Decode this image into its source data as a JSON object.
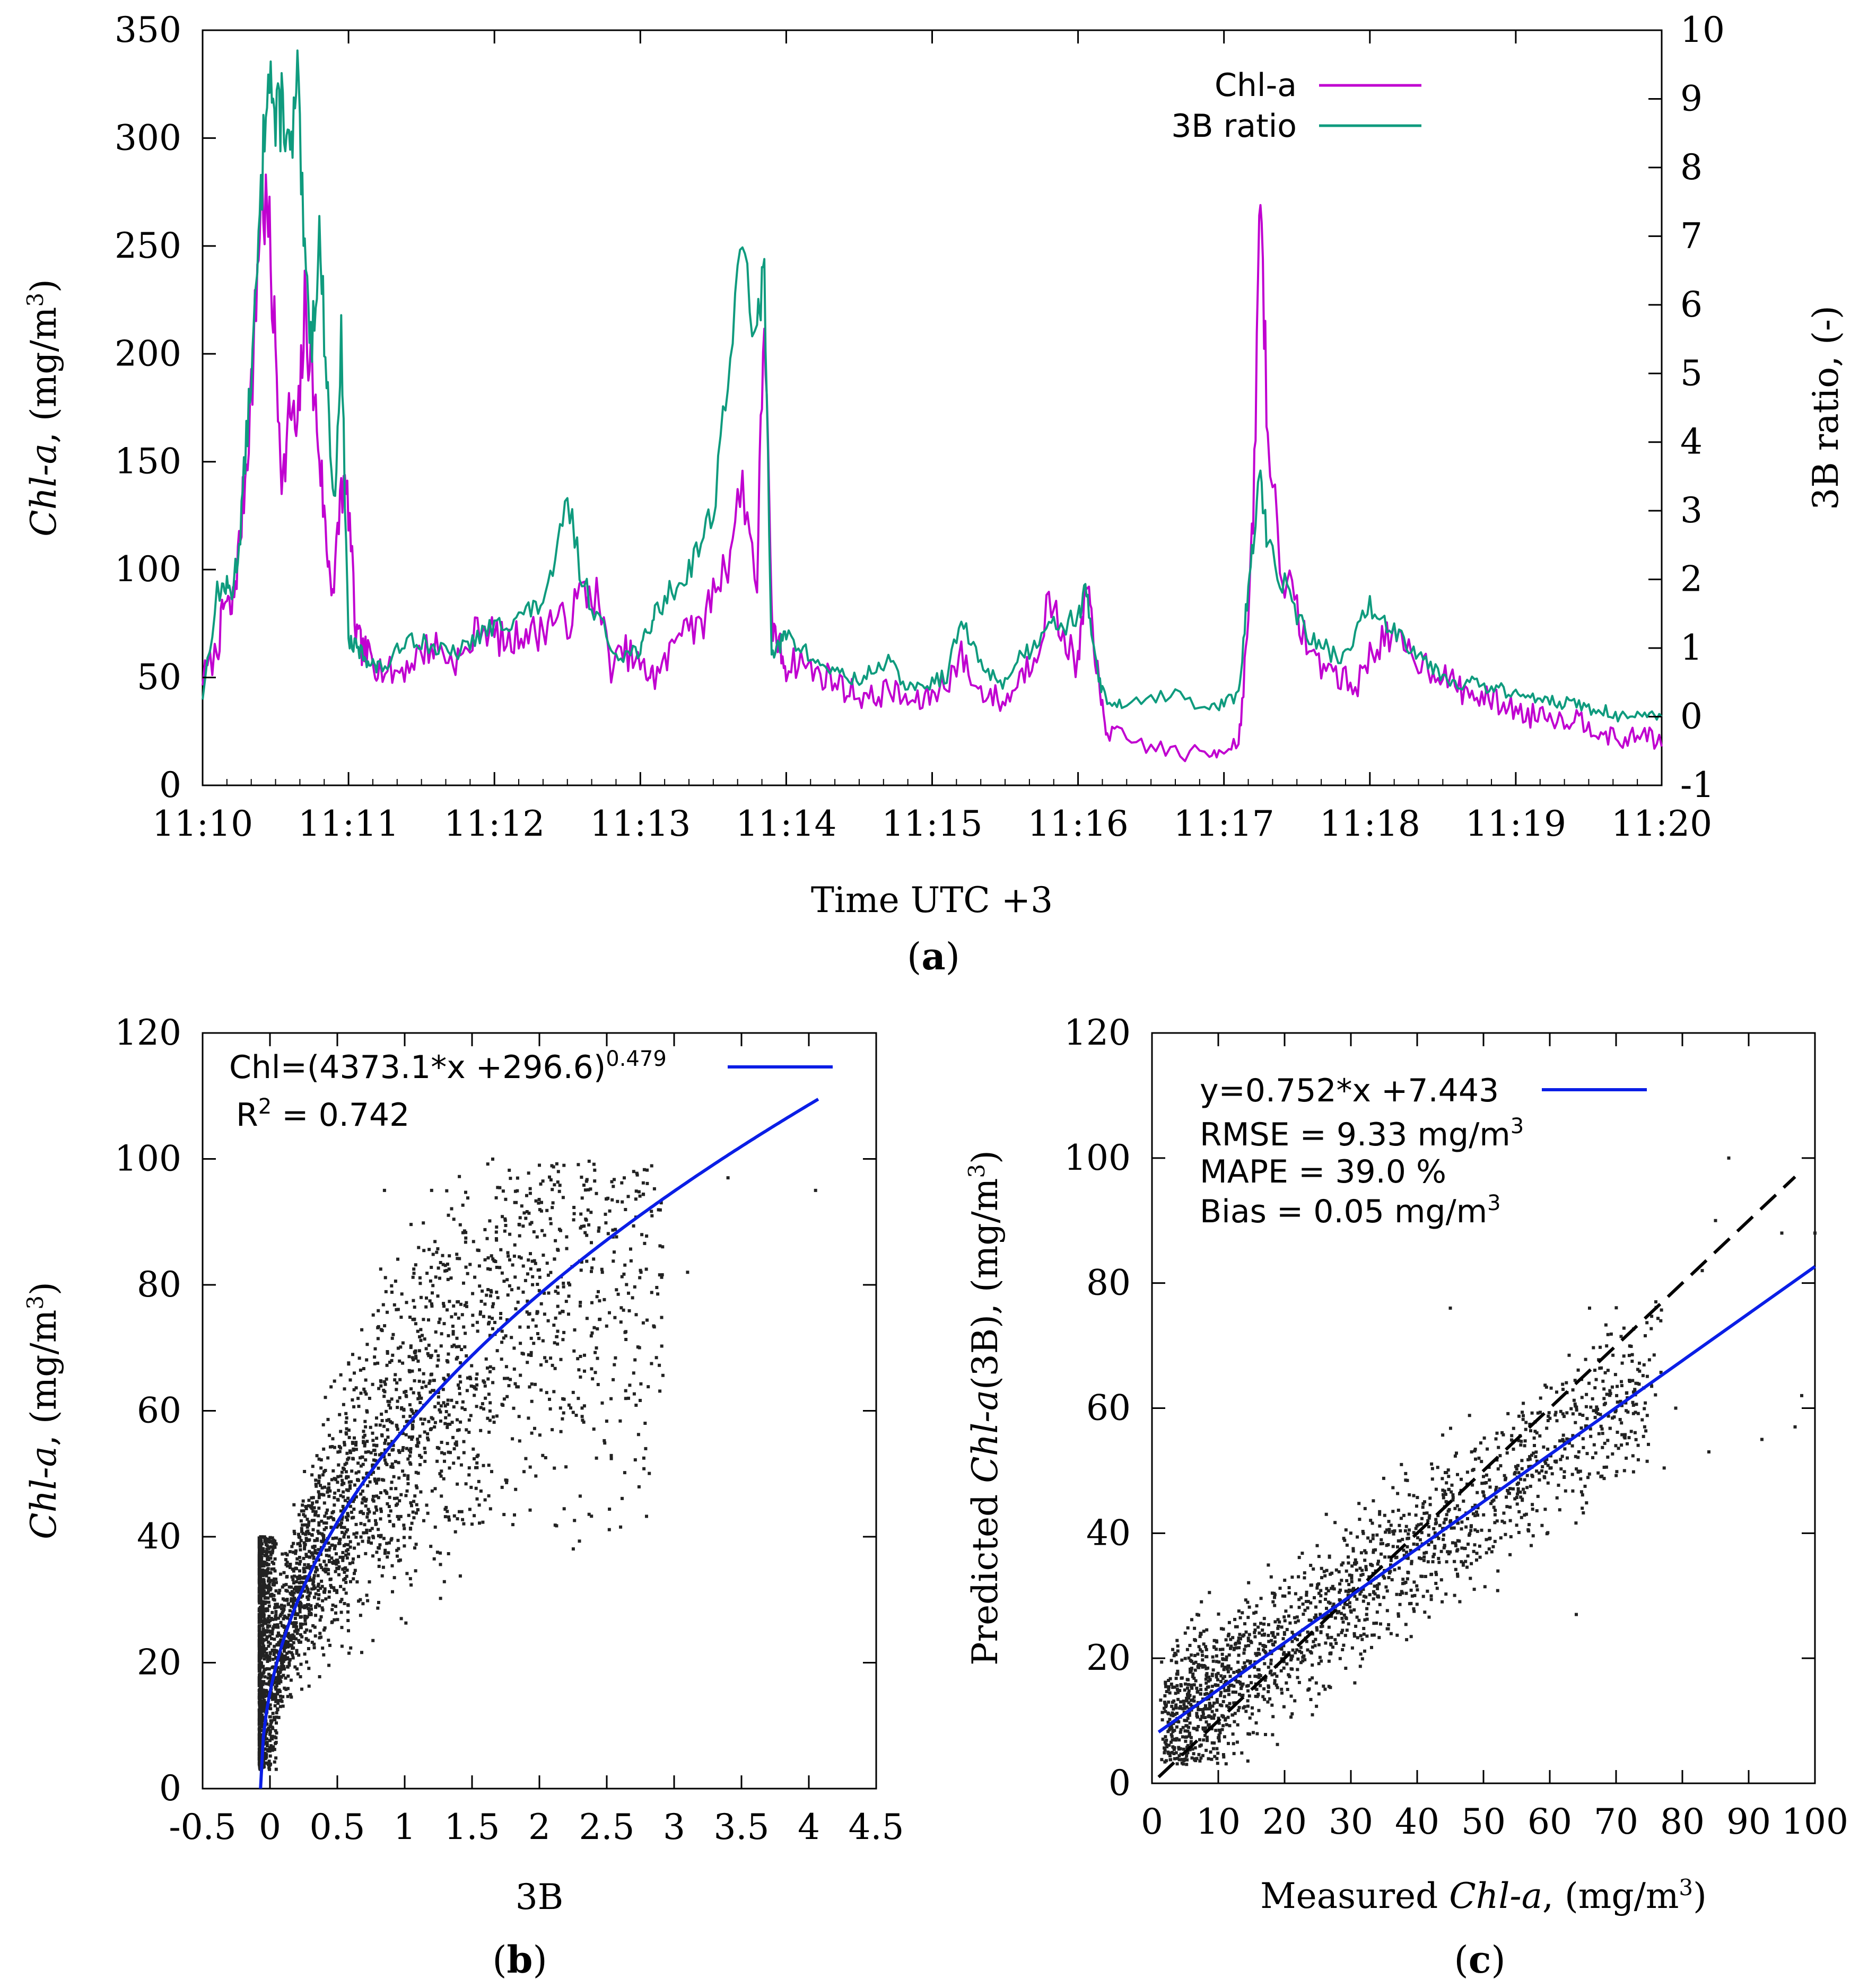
{
  "colors": {
    "chl": "#c000d0",
    "ratio": "#0f9b7e",
    "fit": "#0a1ee6",
    "points": "#222222",
    "axis": "#000000"
  },
  "chart_data": [
    {
      "type": "line",
      "panel": "(a)",
      "xlabel": "Time UTC +3",
      "ylabel_italic": "Chl-a",
      "ylabel_rest": ", (mg/m",
      "ylabel_sup": "3",
      "ylabel_close": ")",
      "y2label": "3B ratio, (-)",
      "x_ticks": [
        "11:10",
        "11:11",
        "11:12",
        "11:13",
        "11:14",
        "11:15",
        "11:16",
        "11:17",
        "11:18",
        "11:19",
        "11:20"
      ],
      "x_range_min": [
        0,
        10
      ],
      "ylim": [
        0,
        350
      ],
      "y_ticks": [
        0,
        50,
        100,
        150,
        200,
        250,
        300,
        350
      ],
      "y2lim": [
        -1,
        10
      ],
      "y2_ticks": [
        -1,
        0,
        1,
        2,
        3,
        4,
        5,
        6,
        7,
        8,
        9,
        10
      ],
      "legend": [
        "Chl-a",
        "3B ratio"
      ],
      "legend_position": "top-right",
      "series": [
        {
          "name": "Chl-a",
          "axis": "y1",
          "x": [
            0,
            0.1,
            0.15,
            0.2,
            0.25,
            0.3,
            0.35,
            0.4,
            0.45,
            0.5,
            0.55,
            0.6,
            0.65,
            0.7,
            0.75,
            0.8,
            0.85,
            0.9,
            0.95,
            1.0,
            1.05,
            1.1,
            1.15,
            1.2,
            1.3,
            1.4,
            1.5,
            1.6,
            1.7,
            1.8,
            1.9,
            2.0,
            2.1,
            2.2,
            2.3,
            2.4,
            2.5,
            2.6,
            2.7,
            2.8,
            2.9,
            3.0,
            3.05,
            3.1,
            3.2,
            3.3,
            3.4,
            3.5,
            3.6,
            3.7,
            3.8,
            3.85,
            3.9,
            3.95,
            4.0,
            4.1,
            4.2,
            4.3,
            4.4,
            4.5,
            4.6,
            4.7,
            4.8,
            4.9,
            5.0,
            5.1,
            5.2,
            5.3,
            5.4,
            5.5,
            5.6,
            5.7,
            5.8,
            5.9,
            6.0,
            6.05,
            6.1,
            6.15,
            6.2,
            6.3,
            6.5,
            6.7,
            6.9,
            7.0,
            7.1,
            7.15,
            7.2,
            7.25,
            7.3,
            7.4,
            7.5,
            7.6,
            7.7,
            7.8,
            7.9,
            8.0,
            8.1,
            8.2,
            8.3,
            8.4,
            8.5,
            8.6,
            8.7,
            8.8,
            8.9,
            9.0,
            9.1,
            9.2,
            9.3,
            9.4,
            9.5,
            9.6,
            9.7,
            9.8,
            9.9,
            10.0
          ],
          "y": [
            50,
            62,
            85,
            80,
            110,
            150,
            200,
            275,
            260,
            200,
            140,
            175,
            160,
            220,
            190,
            155,
            110,
            90,
            140,
            130,
            70,
            62,
            60,
            55,
            52,
            55,
            62,
            65,
            58,
            60,
            75,
            70,
            65,
            72,
            70,
            78,
            75,
            90,
            88,
            55,
            62,
            55,
            52,
            50,
            60,
            80,
            70,
            90,
            105,
            140,
            95,
            225,
            75,
            65,
            55,
            58,
            52,
            50,
            45,
            42,
            40,
            45,
            40,
            38,
            42,
            48,
            60,
            45,
            42,
            38,
            50,
            60,
            85,
            70,
            55,
            90,
            75,
            40,
            25,
            22,
            18,
            15,
            14,
            18,
            20,
            60,
            120,
            280,
            160,
            100,
            80,
            60,
            55,
            50,
            45,
            60,
            70,
            65,
            60,
            55,
            52,
            45,
            42,
            40,
            38,
            35,
            32,
            35,
            30,
            32,
            28,
            25,
            20,
            22,
            25,
            18
          ]
        },
        {
          "name": "3B ratio",
          "axis": "y2",
          "x": [
            0,
            0.1,
            0.15,
            0.2,
            0.25,
            0.3,
            0.35,
            0.4,
            0.45,
            0.5,
            0.55,
            0.6,
            0.65,
            0.7,
            0.75,
            0.8,
            0.85,
            0.9,
            0.95,
            1.0,
            1.05,
            1.1,
            1.15,
            1.2,
            1.3,
            1.4,
            1.5,
            1.6,
            1.7,
            1.8,
            1.9,
            2.0,
            2.1,
            2.2,
            2.3,
            2.4,
            2.5,
            2.6,
            2.7,
            2.8,
            2.9,
            3.0,
            3.05,
            3.1,
            3.2,
            3.3,
            3.4,
            3.5,
            3.6,
            3.7,
            3.8,
            3.85,
            3.9,
            3.95,
            4.0,
            4.1,
            4.2,
            4.3,
            4.4,
            4.5,
            4.6,
            4.7,
            4.8,
            4.9,
            5.0,
            5.1,
            5.2,
            5.3,
            5.4,
            5.5,
            5.6,
            5.7,
            5.8,
            5.9,
            6.0,
            6.05,
            6.1,
            6.15,
            6.2,
            6.3,
            6.5,
            6.7,
            6.9,
            7.0,
            7.1,
            7.15,
            7.2,
            7.25,
            7.3,
            7.4,
            7.5,
            7.6,
            7.7,
            7.8,
            7.9,
            8.0,
            8.1,
            8.2,
            8.3,
            8.4,
            8.5,
            8.6,
            8.7,
            8.8,
            8.9,
            9.0,
            9.1,
            9.2,
            9.3,
            9.4,
            9.5,
            9.6,
            9.7,
            9.8,
            9.9,
            10.0
          ],
          "y": [
            0.3,
            1.8,
            1.9,
            1.8,
            2.5,
            4.0,
            5.5,
            7.5,
            9.8,
            8.5,
            9.0,
            8.0,
            9.2,
            6.5,
            5.5,
            7.0,
            5.0,
            3.0,
            5.5,
            1.1,
            1.0,
            0.9,
            0.8,
            0.7,
            0.8,
            1.2,
            1.1,
            1.0,
            0.9,
            1.0,
            1.2,
            1.3,
            1.4,
            1.5,
            1.6,
            2.0,
            3.2,
            2.0,
            1.5,
            1.0,
            0.9,
            1.0,
            1.2,
            1.5,
            1.8,
            2.0,
            2.5,
            3.0,
            5.0,
            6.8,
            5.5,
            6.5,
            1.0,
            1.0,
            1.2,
            1.0,
            0.8,
            0.7,
            0.6,
            0.5,
            0.7,
            0.8,
            0.5,
            0.4,
            0.5,
            0.6,
            1.4,
            0.9,
            0.6,
            0.5,
            0.9,
            1.0,
            1.5,
            1.3,
            1.5,
            1.8,
            1.2,
            0.5,
            0.2,
            0.2,
            0.3,
            0.3,
            0.1,
            0.2,
            0.3,
            1.5,
            2.5,
            3.5,
            2.5,
            2.0,
            1.5,
            1.1,
            1.0,
            0.8,
            1.2,
            1.6,
            1.4,
            1.2,
            1.0,
            0.8,
            0.6,
            0.5,
            0.5,
            0.4,
            0.4,
            0.3,
            0.3,
            0.3,
            0.2,
            0.2,
            0.1,
            0.1,
            0.0,
            0.0,
            0.0,
            0.0
          ]
        }
      ]
    },
    {
      "type": "scatter",
      "panel": "(b)",
      "xlabel": "3B",
      "ylabel_italic": "Chl-a",
      "ylabel_rest": ", (mg/m",
      "ylabel_sup": "3",
      "ylabel_close": ")",
      "xlim": [
        -0.5,
        4.5
      ],
      "x_ticks": [
        -0.5,
        0,
        0.5,
        1,
        1.5,
        2,
        2.5,
        3,
        3.5,
        4,
        4.5
      ],
      "ylim": [
        0,
        120
      ],
      "y_ticks": [
        0,
        20,
        40,
        60,
        80,
        100,
        120
      ],
      "fit_label": "Chl=(4373.1*x +296.6)",
      "fit_exponent": "0.479",
      "r2_label": "R",
      "r2_sup": "2",
      "r2_value": " = 0.742",
      "fit": {
        "a": 4373.1,
        "b": 296.6,
        "exp": 0.479,
        "x_from": -0.07,
        "x_to": 4.07
      },
      "scatter_points": "~4000 measured points concentrated near x=0, y=5-40, trending up along the fit"
    },
    {
      "type": "scatter",
      "panel": "(c)",
      "xlabel_pre": "Measured ",
      "xlabel_italic": "Chl-a",
      "xlabel_rest": ", (mg/m",
      "xlabel_sup": "3",
      "xlabel_close": ")",
      "ylabel_pre": "Predicted ",
      "ylabel_italic": "Chl-a",
      "ylabel_rest": "(3B), (mg/m",
      "ylabel_sup": "3",
      "ylabel_close": ")",
      "xlim": [
        0,
        100
      ],
      "x_ticks": [
        0,
        10,
        20,
        30,
        40,
        50,
        60,
        70,
        80,
        90,
        100
      ],
      "ylim": [
        0,
        120
      ],
      "y_ticks": [
        0,
        20,
        40,
        60,
        80,
        100,
        120
      ],
      "fit_label": "y=0.752*x +7.443",
      "stats": [
        {
          "text": "RMSE = 9.33 mg/m",
          "sup": "3"
        },
        {
          "text": "MAPE = 39.0 %",
          "sup": ""
        },
        {
          "text": "Bias = 0.05 mg/m",
          "sup": "3"
        }
      ],
      "fit": {
        "slope": 0.752,
        "intercept": 7.443
      },
      "one_to_one_line": "dashed black y=x",
      "scatter_points": "~2000 points of measured vs predicted Chl-a"
    }
  ]
}
